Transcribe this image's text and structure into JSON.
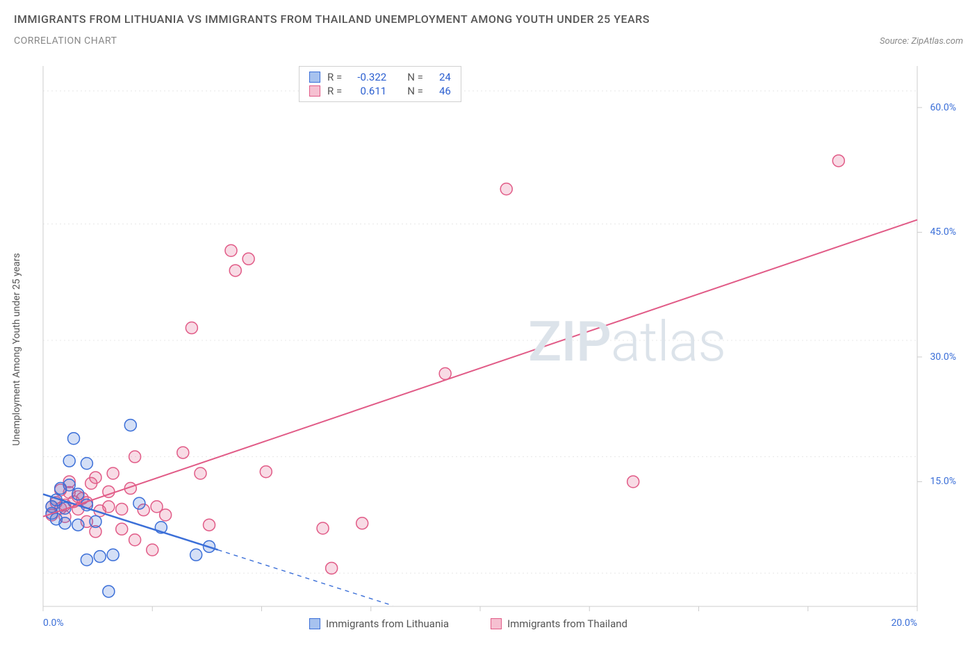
{
  "header": {
    "title": "IMMIGRANTS FROM LITHUANIA VS IMMIGRANTS FROM THAILAND UNEMPLOYMENT AMONG YOUTH UNDER 25 YEARS",
    "subtitle": "CORRELATION CHART",
    "source_prefix": "Source: ",
    "source_name": "ZipAtlas.com"
  },
  "watermark": {
    "zip": "ZIP",
    "atlas": "atlas"
  },
  "chart": {
    "type": "scatter",
    "ylabel": "Unemployment Among Youth under 25 years",
    "background_color": "#ffffff",
    "grid_color": "#e8e8e8",
    "axis_color": "#cccccc",
    "tick_color": "#cccccc",
    "tick_label_color": "#3b6fd8",
    "xlim": [
      0,
      20
    ],
    "ylim": [
      0,
      65
    ],
    "xticks": [
      0,
      2.5,
      5,
      7.5,
      10,
      12.5,
      15,
      17.5,
      20
    ],
    "xtick_labels": {
      "0": "0.0%",
      "20": "20.0%"
    },
    "yticks": [
      15,
      30,
      45,
      60
    ],
    "ytick_labels": {
      "15": "15.0%",
      "30": "30.0%",
      "45": "45.0%",
      "60": "60.0%"
    },
    "gridlines_y": [
      4,
      18,
      32,
      46,
      62
    ],
    "marker_radius": 8.5,
    "marker_stroke_width": 1.5,
    "marker_fill_opacity": 0.22,
    "series": [
      {
        "id": "lithuania",
        "label": "Immigrants from Lithuania",
        "color": "#3b6fd8",
        "fill": "#a7c2ef",
        "R": "-0.322",
        "N": "24",
        "trend": {
          "x1": 0,
          "y1": 13.5,
          "x2": 4.0,
          "y2": 6.8,
          "extrap_x2": 8.0,
          "extrap_y2": 0.1
        },
        "points": [
          [
            0.2,
            12.0
          ],
          [
            0.2,
            11.2
          ],
          [
            0.3,
            12.8
          ],
          [
            0.3,
            10.5
          ],
          [
            0.4,
            14.2
          ],
          [
            0.5,
            11.8
          ],
          [
            0.5,
            10.0
          ],
          [
            0.6,
            17.5
          ],
          [
            0.6,
            14.6
          ],
          [
            0.7,
            20.2
          ],
          [
            0.8,
            13.5
          ],
          [
            0.8,
            9.8
          ],
          [
            1.0,
            17.2
          ],
          [
            1.0,
            12.2
          ],
          [
            1.0,
            5.6
          ],
          [
            1.2,
            10.2
          ],
          [
            1.3,
            6.0
          ],
          [
            1.5,
            1.8
          ],
          [
            1.6,
            6.2
          ],
          [
            2.0,
            21.8
          ],
          [
            2.2,
            12.4
          ],
          [
            2.7,
            9.5
          ],
          [
            3.5,
            6.2
          ],
          [
            3.8,
            7.2
          ]
        ]
      },
      {
        "id": "thailand",
        "label": "Immigrants from Thailand",
        "color": "#e15b87",
        "fill": "#f6c0d1",
        "R": "0.611",
        "N": "46",
        "trend": {
          "x1": 0,
          "y1": 10.8,
          "x2": 20,
          "y2": 46.5
        },
        "points": [
          [
            0.2,
            12.0
          ],
          [
            0.2,
            11.0
          ],
          [
            0.3,
            12.5
          ],
          [
            0.4,
            11.8
          ],
          [
            0.4,
            14.0
          ],
          [
            0.5,
            12.2
          ],
          [
            0.5,
            10.8
          ],
          [
            0.6,
            13.7
          ],
          [
            0.6,
            15.0
          ],
          [
            0.7,
            12.6
          ],
          [
            0.8,
            11.7
          ],
          [
            0.8,
            13.2
          ],
          [
            0.9,
            13.0
          ],
          [
            1.0,
            10.2
          ],
          [
            1.0,
            12.5
          ],
          [
            1.1,
            14.8
          ],
          [
            1.2,
            15.5
          ],
          [
            1.2,
            9.0
          ],
          [
            1.3,
            11.5
          ],
          [
            1.5,
            13.8
          ],
          [
            1.5,
            12.0
          ],
          [
            1.6,
            16.0
          ],
          [
            1.8,
            9.3
          ],
          [
            1.8,
            11.7
          ],
          [
            2.0,
            14.2
          ],
          [
            2.1,
            18.0
          ],
          [
            2.1,
            8.0
          ],
          [
            2.3,
            11.6
          ],
          [
            2.5,
            6.8
          ],
          [
            2.6,
            12.0
          ],
          [
            2.8,
            11.0
          ],
          [
            3.2,
            18.5
          ],
          [
            3.4,
            33.5
          ],
          [
            3.6,
            16.0
          ],
          [
            3.8,
            9.8
          ],
          [
            4.3,
            42.8
          ],
          [
            4.4,
            40.4
          ],
          [
            4.7,
            41.8
          ],
          [
            5.1,
            16.2
          ],
          [
            6.4,
            9.4
          ],
          [
            6.6,
            4.6
          ],
          [
            7.3,
            10.0
          ],
          [
            9.2,
            28.0
          ],
          [
            10.6,
            50.2
          ],
          [
            13.5,
            15.0
          ],
          [
            18.2,
            53.6
          ]
        ]
      }
    ],
    "legend_top": {
      "R_label": "R =",
      "N_label": "N ="
    },
    "legend_bottom_items": [
      {
        "ref": "lithuania"
      },
      {
        "ref": "thailand"
      }
    ]
  }
}
